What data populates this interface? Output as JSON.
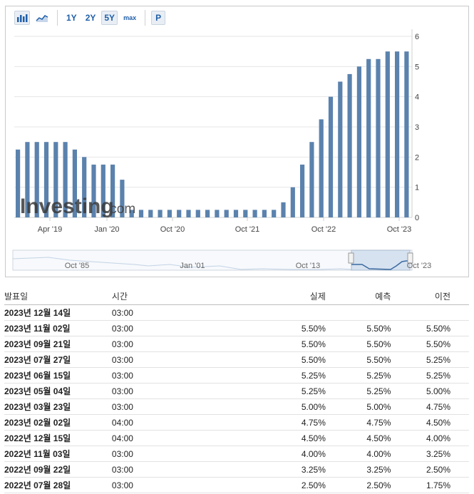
{
  "toolbar": {
    "ranges": [
      "1Y",
      "2Y",
      "5Y",
      "max"
    ],
    "active_range": "5Y",
    "p_label": "P",
    "icons": [
      "bar-chart-icon",
      "area-chart-icon"
    ]
  },
  "watermark": {
    "brand": "Investing",
    "suffix": ".com"
  },
  "chart_data": {
    "type": "bar",
    "title": "",
    "ylim": [
      0,
      6
    ],
    "y_ticks": [
      0,
      1,
      2,
      3,
      4,
      5,
      6
    ],
    "x_tick_labels": [
      "Apr '19",
      "Jan '20",
      "Oct '20",
      "Oct '21",
      "Oct '22",
      "Oct '23"
    ],
    "values": [
      2.25,
      2.5,
      2.5,
      2.5,
      2.5,
      2.5,
      2.25,
      2.0,
      1.75,
      1.75,
      1.75,
      1.25,
      0.25,
      0.25,
      0.25,
      0.25,
      0.25,
      0.25,
      0.25,
      0.25,
      0.25,
      0.25,
      0.25,
      0.25,
      0.25,
      0.25,
      0.25,
      0.25,
      0.5,
      1.0,
      1.75,
      2.5,
      3.25,
      4.0,
      4.5,
      4.75,
      5.0,
      5.25,
      5.25,
      5.5,
      5.5,
      5.5
    ],
    "bar_color": "#5b82ad",
    "navigator": {
      "labels": [
        "Oct '85",
        "Jan '01",
        "Oct '13",
        "Oct '23"
      ]
    }
  },
  "table": {
    "headers": {
      "date": "발표일",
      "time": "시간",
      "actual": "실제",
      "forecast": "예측",
      "previous": "이전"
    },
    "rows": [
      {
        "date": "2023년 12월 14일",
        "time": "03:00",
        "actual": "",
        "forecast": "",
        "previous": ""
      },
      {
        "date": "2023년 11월 02일",
        "time": "03:00",
        "actual": "5.50%",
        "forecast": "5.50%",
        "previous": "5.50%"
      },
      {
        "date": "2023년 09월 21일",
        "time": "03:00",
        "actual": "5.50%",
        "forecast": "5.50%",
        "previous": "5.50%"
      },
      {
        "date": "2023년 07월 27일",
        "time": "03:00",
        "actual": "5.50%",
        "forecast": "5.50%",
        "previous": "5.25%"
      },
      {
        "date": "2023년 06월 15일",
        "time": "03:00",
        "actual": "5.25%",
        "forecast": "5.25%",
        "previous": "5.25%"
      },
      {
        "date": "2023년 05월 04일",
        "time": "03:00",
        "actual": "5.25%",
        "forecast": "5.25%",
        "previous": "5.00%"
      },
      {
        "date": "2023년 03월 23일",
        "time": "03:00",
        "actual": "5.00%",
        "forecast": "5.00%",
        "previous": "4.75%"
      },
      {
        "date": "2023년 02월 02일",
        "time": "04:00",
        "actual": "4.75%",
        "forecast": "4.75%",
        "previous": "4.50%"
      },
      {
        "date": "2022년 12월 15일",
        "time": "04:00",
        "actual": "4.50%",
        "forecast": "4.50%",
        "previous": "4.00%"
      },
      {
        "date": "2022년 11월 03일",
        "time": "03:00",
        "actual": "4.00%",
        "forecast": "4.00%",
        "previous": "3.25%"
      },
      {
        "date": "2022년 09월 22일",
        "time": "03:00",
        "actual": "3.25%",
        "forecast": "3.25%",
        "previous": "2.50%"
      },
      {
        "date": "2022년 07월 28일",
        "time": "03:00",
        "actual": "2.50%",
        "forecast": "2.50%",
        "previous": "1.75%"
      }
    ]
  }
}
